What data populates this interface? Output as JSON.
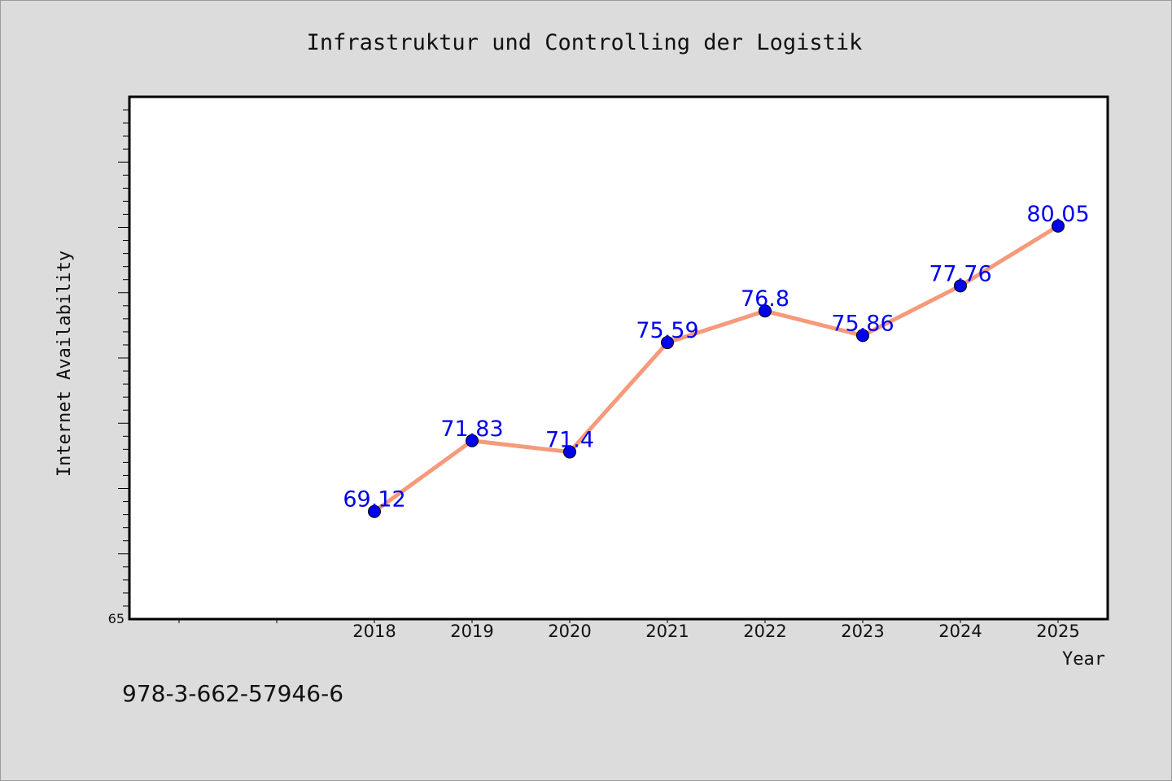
{
  "chart_data": {
    "type": "line",
    "title": "Infrastruktur und Controlling der Logistik",
    "xlabel": "Year",
    "ylabel": "Internet Availability",
    "categories": [
      "2018",
      "2019",
      "2020",
      "2021",
      "2022",
      "2023",
      "2024",
      "2025"
    ],
    "y_tick_labels": [
      "65"
    ],
    "ylim": [
      65,
      85
    ],
    "grid": false,
    "series": [
      {
        "values": [
          69.12,
          71.83,
          71.4,
          75.59,
          76.8,
          75.86,
          77.76,
          80.05
        ],
        "data_labels": [
          "69.12",
          "71.83",
          "71.4",
          "75.59",
          "76.8",
          "75.86",
          "77.76",
          "80.05"
        ],
        "line_color": "#f59a7a",
        "marker_color": "#0000ee",
        "label_color": "#0000ee"
      }
    ]
  },
  "footer": {
    "isbn": "978-3-662-57946-6"
  }
}
